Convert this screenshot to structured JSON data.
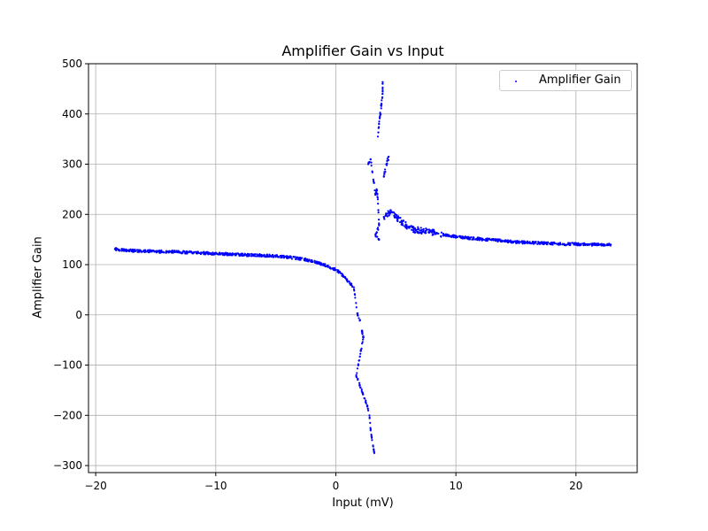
{
  "chart_data": {
    "type": "scatter",
    "title": "Amplifier Gain vs Input",
    "xlabel": "Input (mV)",
    "ylabel": "Amplifier Gain",
    "xlim": [
      -20.6,
      25.1
    ],
    "ylim": [
      -314,
      500
    ],
    "xticks": [
      -20,
      -10,
      0,
      10,
      20
    ],
    "xtick_labels": [
      "−20",
      "−10",
      "0",
      "10",
      "20"
    ],
    "yticks": [
      -300,
      -200,
      -100,
      0,
      100,
      200,
      300,
      400,
      500
    ],
    "ytick_labels": [
      "−300",
      "−200",
      "−100",
      "0",
      "100",
      "200",
      "300",
      "400",
      "500"
    ],
    "grid": true,
    "legend": {
      "position": "upper right",
      "entries": [
        "Amplifier Gain"
      ]
    },
    "series": [
      {
        "name": "Amplifier Gain",
        "color": "#0000ff",
        "marker_size": 2,
        "points": [
          [
            -18.4,
            131
          ],
          [
            -17.8,
            129
          ],
          [
            -17,
            128
          ],
          [
            -16,
            127
          ],
          [
            -15,
            126
          ],
          [
            -14,
            126
          ],
          [
            -13,
            125
          ],
          [
            -12,
            124
          ],
          [
            -11,
            123
          ],
          [
            -10,
            122
          ],
          [
            -9,
            121
          ],
          [
            -8,
            120
          ],
          [
            -7,
            119
          ],
          [
            -6,
            118
          ],
          [
            -5,
            117
          ],
          [
            -4,
            115
          ],
          [
            -3,
            112
          ],
          [
            -2.5,
            110
          ],
          [
            -2,
            107
          ],
          [
            -1.5,
            104
          ],
          [
            -1,
            100
          ],
          [
            -0.5,
            95
          ],
          [
            0,
            90
          ],
          [
            0.3,
            85
          ],
          [
            0.6,
            78
          ],
          [
            0.9,
            70
          ],
          [
            1.2,
            62
          ],
          [
            1.5,
            55
          ],
          [
            1.8,
            2
          ],
          [
            2.0,
            -10
          ],
          [
            2.2,
            -35
          ],
          [
            2.3,
            -45
          ],
          [
            1.7,
            -120
          ],
          [
            2.0,
            -140
          ],
          [
            2.6,
            -180
          ],
          [
            2.8,
            -200
          ],
          [
            2.9,
            -230
          ],
          [
            3.1,
            -260
          ],
          [
            3.2,
            -275
          ],
          [
            2.7,
            300
          ],
          [
            2.9,
            310
          ],
          [
            3.3,
            240
          ],
          [
            3.4,
            250
          ],
          [
            3.5,
            230
          ],
          [
            3.6,
            180
          ],
          [
            3.3,
            160
          ],
          [
            3.6,
            150
          ],
          [
            3.5,
            355
          ],
          [
            3.6,
            380
          ],
          [
            3.7,
            400
          ],
          [
            3.8,
            420
          ],
          [
            3.9,
            440
          ],
          [
            3.9,
            460
          ],
          [
            4.0,
            275
          ],
          [
            4.2,
            300
          ],
          [
            4.4,
            315
          ],
          [
            4.0,
            195
          ],
          [
            4.5,
            205
          ],
          [
            5,
            195
          ],
          [
            5.5,
            185
          ],
          [
            6,
            175
          ],
          [
            6.5,
            170
          ],
          [
            7,
            168
          ],
          [
            8,
            165
          ],
          [
            9,
            160
          ],
          [
            10,
            156
          ],
          [
            11,
            153
          ],
          [
            12,
            151
          ],
          [
            13,
            149
          ],
          [
            14,
            147
          ],
          [
            15,
            145
          ],
          [
            16,
            144
          ],
          [
            17,
            143
          ],
          [
            18,
            142
          ],
          [
            19,
            141
          ],
          [
            20,
            141
          ],
          [
            21,
            140
          ],
          [
            22,
            140
          ],
          [
            22.9,
            140
          ]
        ]
      }
    ]
  }
}
